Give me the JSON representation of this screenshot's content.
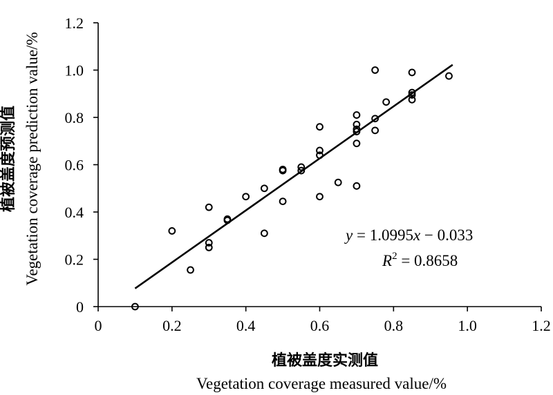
{
  "chart_data": {
    "type": "scatter",
    "xlabel_cn": "植被盖度实测值",
    "xlabel_en": "Vegetation coverage measured value/%",
    "ylabel_cn": "植被盖度预测值",
    "ylabel_en": "Vegetation coverage prediction value/%",
    "xlim": [
      0,
      1.2
    ],
    "ylim": [
      0,
      1.2
    ],
    "x_ticks": [
      0,
      0.2,
      0.4,
      0.6,
      0.8,
      1.0,
      1.2
    ],
    "y_ticks": [
      0,
      0.2,
      0.4,
      0.6,
      0.8,
      1.0,
      1.2
    ],
    "x_tick_labels": [
      "0",
      "0.2",
      "0.4",
      "0.6",
      "0.8",
      "1.0",
      "1.2"
    ],
    "y_tick_labels": [
      "0",
      "0.2",
      "0.4",
      "0.6",
      "0.8",
      "1.0",
      "1.2"
    ],
    "grid": false,
    "points": [
      [
        0.1,
        0.0
      ],
      [
        0.2,
        0.32
      ],
      [
        0.25,
        0.155
      ],
      [
        0.3,
        0.42
      ],
      [
        0.3,
        0.27
      ],
      [
        0.3,
        0.25
      ],
      [
        0.35,
        0.37
      ],
      [
        0.35,
        0.365
      ],
      [
        0.4,
        0.465
      ],
      [
        0.45,
        0.5
      ],
      [
        0.45,
        0.31
      ],
      [
        0.5,
        0.58
      ],
      [
        0.5,
        0.575
      ],
      [
        0.5,
        0.445
      ],
      [
        0.55,
        0.59
      ],
      [
        0.55,
        0.575
      ],
      [
        0.6,
        0.76
      ],
      [
        0.6,
        0.66
      ],
      [
        0.6,
        0.64
      ],
      [
        0.6,
        0.465
      ],
      [
        0.65,
        0.525
      ],
      [
        0.7,
        0.81
      ],
      [
        0.7,
        0.77
      ],
      [
        0.7,
        0.75
      ],
      [
        0.7,
        0.74
      ],
      [
        0.7,
        0.69
      ],
      [
        0.7,
        0.51
      ],
      [
        0.75,
        1.0
      ],
      [
        0.75,
        0.795
      ],
      [
        0.75,
        0.745
      ],
      [
        0.78,
        0.865
      ],
      [
        0.85,
        0.99
      ],
      [
        0.85,
        0.905
      ],
      [
        0.85,
        0.895
      ],
      [
        0.85,
        0.875
      ],
      [
        0.95,
        0.975
      ]
    ],
    "fit": {
      "slope": 1.0995,
      "intercept": -0.033,
      "x_range": [
        0.1,
        0.96
      ]
    },
    "annotation": {
      "equation": "y = 1.0995x −  0.033",
      "r2_label": "R",
      "r2_sup": "2",
      "r2_value": " = 0.8658"
    }
  }
}
